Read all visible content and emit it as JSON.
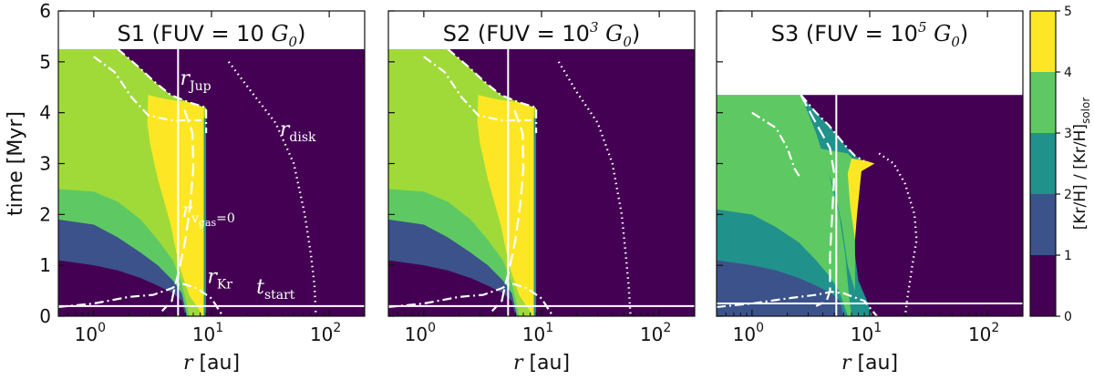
{
  "chart_data": {
    "type": "heatmap",
    "xscale": "log",
    "xlim": [
      0.5,
      200
    ],
    "ylim": [
      0,
      6
    ],
    "xlabel_var": "r",
    "xlabel_unit": "[au]",
    "ylabel": "time [Myr]",
    "x_ticks": [
      {
        "value": 1,
        "base": "10",
        "exp": "0"
      },
      {
        "value": 10,
        "base": "10",
        "exp": "1"
      },
      {
        "value": 100,
        "base": "10",
        "exp": "2"
      }
    ],
    "y_ticks": [
      "0",
      "1",
      "2",
      "3",
      "4",
      "5",
      "6"
    ],
    "colorbar": {
      "range": [
        0,
        5
      ],
      "ticks": [
        "0",
        "1",
        "2",
        "3",
        "4",
        "5"
      ],
      "label": "[Kr/H] / [Kr/H]",
      "label_sub": "solor",
      "levels": [
        "#440154",
        "#3b528b",
        "#21918c",
        "#5ec962",
        "#a0da39",
        "#fde725"
      ]
    },
    "panels": [
      {
        "title_pre": "S1 (FUV = 10 ",
        "title_exp": "",
        "title_G": "G",
        "title_sub": "0",
        "title_post": ")",
        "end_time": 5.25,
        "r_jupiter": 5.2,
        "t_start": 0.2,
        "annotations": [
          {
            "main": "r",
            "sub": "Jup",
            "x": 5.4,
            "y": 4.55
          },
          {
            "main": "r",
            "sub": "disk",
            "x": 38,
            "y": 3.55
          },
          {
            "main": "r",
            "sub": "v",
            "subsub": "gas",
            "tail": "=0",
            "x": 5.6,
            "y": 1.95
          },
          {
            "main": "r",
            "sub": "Kr",
            "x": 9.2,
            "y": 0.65
          },
          {
            "main": "t",
            "sub": "start",
            "x": 24,
            "y": 0.45
          }
        ],
        "outer_edge": [
          [
            1.6,
            5.25
          ],
          [
            2.4,
            4.9
          ],
          [
            3.3,
            4.6
          ],
          [
            4.5,
            4.35
          ],
          [
            6.5,
            4.2
          ],
          [
            9.0,
            4.1
          ],
          [
            9.0,
            3.6
          ],
          [
            8.8,
            2.6
          ],
          [
            8.8,
            0.0
          ]
        ],
        "bands_outer": [
          [
            0.5,
            1.0,
            "#5ec962"
          ],
          [
            1.0,
            1.7,
            "#21918c"
          ]
        ],
        "low_bands": [
          {
            "level": 4,
            "pts": [
              [
                0.5,
                2.5
              ],
              [
                1.0,
                2.45
              ],
              [
                1.6,
                2.25
              ],
              [
                2.5,
                1.9
              ],
              [
                3.5,
                1.5
              ],
              [
                4.7,
                1.1
              ],
              [
                5.6,
                0.65
              ],
              [
                6.5,
                0.0
              ]
            ]
          },
          {
            "level": 2,
            "pts": [
              [
                0.5,
                1.9
              ],
              [
                1.0,
                1.8
              ],
              [
                1.6,
                1.55
              ],
              [
                2.5,
                1.25
              ],
              [
                3.5,
                1.0
              ],
              [
                4.7,
                0.7
              ],
              [
                5.6,
                0.45
              ],
              [
                6.2,
                0.0
              ]
            ]
          },
          {
            "level": 1,
            "pts": [
              [
                0.5,
                1.1
              ],
              [
                1.0,
                1.0
              ],
              [
                1.6,
                0.9
              ],
              [
                2.5,
                0.75
              ],
              [
                3.5,
                0.6
              ],
              [
                4.7,
                0.45
              ],
              [
                5.6,
                0.3
              ],
              [
                6.0,
                0.0
              ]
            ]
          }
        ],
        "yellow": [
          [
            2.9,
            4.35
          ],
          [
            3.5,
            4.3
          ],
          [
            4.5,
            4.25
          ],
          [
            6.5,
            4.2
          ],
          [
            8.6,
            4.1
          ],
          [
            8.6,
            0.0
          ],
          [
            6.5,
            0.4
          ],
          [
            5.3,
            1.0
          ],
          [
            4.5,
            1.8
          ],
          [
            3.5,
            2.7
          ],
          [
            3.0,
            3.4
          ],
          [
            2.85,
            3.8
          ],
          [
            2.9,
            4.35
          ]
        ],
        "r_disk": [
          [
            14,
            5.0
          ],
          [
            22,
            4.4
          ],
          [
            35,
            3.8
          ],
          [
            50,
            3.0
          ],
          [
            62,
            2.0
          ],
          [
            70,
            1.2
          ],
          [
            75,
            0.6
          ],
          [
            77,
            0.0
          ]
        ],
        "r_vgas": [
          [
            5.9,
            4.05
          ],
          [
            6.9,
            3.6
          ],
          [
            7.0,
            2.9
          ],
          [
            6.6,
            2.2
          ],
          [
            6.0,
            1.5
          ],
          [
            5.3,
            0.9
          ],
          [
            4.9,
            0.6
          ],
          [
            4.6,
            0.3
          ],
          [
            3.8,
            0.1
          ]
        ],
        "r_kr": [
          [
            1.0,
            5.1
          ],
          [
            1.5,
            4.8
          ],
          [
            2.1,
            4.3
          ],
          [
            2.9,
            3.95
          ],
          [
            4.5,
            3.85
          ],
          [
            8.2,
            3.85
          ]
        ],
        "dash_dot_low": [
          [
            0.5,
            0.18
          ],
          [
            1.0,
            0.25
          ],
          [
            2.0,
            0.38
          ],
          [
            3.2,
            0.42
          ],
          [
            4.6,
            0.55
          ],
          [
            5.5,
            0.65
          ],
          [
            7.5,
            0.55
          ],
          [
            10.0,
            0.35
          ],
          [
            12.5,
            0.0
          ]
        ]
      },
      {
        "title_pre": "S2 (FUV = 10",
        "title_exp": "3",
        "title_G": "G",
        "title_sub": "0",
        "title_post": ")",
        "end_time": 5.25,
        "r_jupiter": 5.2,
        "t_start": 0.2,
        "annotations": [],
        "outer_edge": [
          [
            1.6,
            5.25
          ],
          [
            2.4,
            4.9
          ],
          [
            3.3,
            4.6
          ],
          [
            4.5,
            4.35
          ],
          [
            6.5,
            4.2
          ],
          [
            9.0,
            4.1
          ],
          [
            9.0,
            3.6
          ],
          [
            8.8,
            2.6
          ],
          [
            8.8,
            0.0
          ]
        ],
        "bands_outer": [],
        "low_bands": [
          {
            "level": 4,
            "pts": [
              [
                0.5,
                2.5
              ],
              [
                1.0,
                2.45
              ],
              [
                1.6,
                2.25
              ],
              [
                2.5,
                1.9
              ],
              [
                3.5,
                1.5
              ],
              [
                4.7,
                1.1
              ],
              [
                5.6,
                0.65
              ],
              [
                6.5,
                0.0
              ]
            ]
          },
          {
            "level": 2,
            "pts": [
              [
                0.5,
                1.9
              ],
              [
                1.0,
                1.8
              ],
              [
                1.6,
                1.55
              ],
              [
                2.5,
                1.25
              ],
              [
                3.5,
                1.0
              ],
              [
                4.7,
                0.7
              ],
              [
                5.6,
                0.45
              ],
              [
                6.2,
                0.0
              ]
            ]
          },
          {
            "level": 1,
            "pts": [
              [
                0.5,
                1.1
              ],
              [
                1.0,
                1.0
              ],
              [
                1.6,
                0.9
              ],
              [
                2.5,
                0.75
              ],
              [
                3.5,
                0.6
              ],
              [
                4.7,
                0.45
              ],
              [
                5.6,
                0.3
              ],
              [
                6.0,
                0.0
              ]
            ]
          }
        ],
        "yellow": [
          [
            2.9,
            4.35
          ],
          [
            3.5,
            4.3
          ],
          [
            4.5,
            4.25
          ],
          [
            6.5,
            4.2
          ],
          [
            8.6,
            4.1
          ],
          [
            8.6,
            0.0
          ],
          [
            6.5,
            0.4
          ],
          [
            5.3,
            1.0
          ],
          [
            4.5,
            1.8
          ],
          [
            3.5,
            2.7
          ],
          [
            3.0,
            3.4
          ],
          [
            2.85,
            3.8
          ],
          [
            2.9,
            4.35
          ]
        ],
        "r_disk": [
          [
            14,
            5.0
          ],
          [
            20,
            4.4
          ],
          [
            30,
            3.8
          ],
          [
            40,
            3.0
          ],
          [
            48,
            2.0
          ],
          [
            52,
            1.2
          ],
          [
            55,
            0.6
          ],
          [
            57,
            0.0
          ]
        ],
        "r_vgas": [
          [
            5.9,
            4.05
          ],
          [
            6.9,
            3.6
          ],
          [
            7.0,
            2.9
          ],
          [
            6.6,
            2.2
          ],
          [
            6.0,
            1.5
          ],
          [
            5.3,
            0.9
          ],
          [
            4.9,
            0.6
          ],
          [
            4.6,
            0.3
          ],
          [
            3.8,
            0.1
          ]
        ],
        "r_kr": [
          [
            1.0,
            5.1
          ],
          [
            1.5,
            4.8
          ],
          [
            2.1,
            4.3
          ],
          [
            2.9,
            3.95
          ],
          [
            4.5,
            3.85
          ],
          [
            8.2,
            3.85
          ]
        ],
        "dash_dot_low": [
          [
            0.5,
            0.18
          ],
          [
            1.0,
            0.25
          ],
          [
            2.0,
            0.38
          ],
          [
            3.2,
            0.42
          ],
          [
            4.6,
            0.55
          ],
          [
            5.5,
            0.65
          ],
          [
            7.5,
            0.55
          ],
          [
            10.0,
            0.35
          ],
          [
            12.5,
            0.0
          ]
        ]
      },
      {
        "title_pre": "S3 (FUV = 10",
        "title_exp": "5",
        "title_G": "G",
        "title_sub": "0",
        "title_post": ")",
        "end_time": 4.35,
        "r_jupiter": 5.2,
        "t_start": 0.25,
        "annotations": [],
        "outer_edge": [
          [
            2.6,
            4.35
          ],
          [
            3.5,
            4.0
          ],
          [
            4.5,
            3.75
          ],
          [
            5.5,
            3.5
          ],
          [
            6.5,
            3.3
          ],
          [
            7.5,
            3.15
          ],
          [
            9.0,
            3.05
          ],
          [
            10.5,
            3.0
          ],
          [
            7.5,
            2.8
          ],
          [
            7.2,
            2.0
          ],
          [
            7.5,
            1.2
          ],
          [
            8.0,
            0.7
          ],
          [
            9.5,
            0.3
          ],
          [
            10.5,
            0.0
          ]
        ],
        "bands_outer": [],
        "low_bands": [
          {
            "level": 3,
            "pts": [
              [
                0.5,
                4.35
              ],
              [
                2.6,
                4.35
              ],
              [
                3.5,
                3.6
              ],
              [
                4.5,
                2.8
              ],
              [
                5.5,
                2.0
              ],
              [
                6.2,
                1.2
              ],
              [
                6.6,
                0.5
              ],
              [
                7.0,
                0.0
              ]
            ]
          },
          {
            "level": 2,
            "pts": [
              [
                0.5,
                2.1
              ],
              [
                1.0,
                2.0
              ],
              [
                1.6,
                1.75
              ],
              [
                2.5,
                1.45
              ],
              [
                3.5,
                1.1
              ],
              [
                4.5,
                0.8
              ],
              [
                5.5,
                0.5
              ],
              [
                6.5,
                0.0
              ]
            ]
          },
          {
            "level": 1,
            "pts": [
              [
                0.5,
                1.1
              ],
              [
                1.0,
                1.0
              ],
              [
                1.6,
                0.9
              ],
              [
                2.5,
                0.75
              ],
              [
                3.5,
                0.6
              ],
              [
                4.7,
                0.45
              ],
              [
                5.6,
                0.3
              ],
              [
                6.0,
                0.0
              ]
            ]
          }
        ],
        "greenish": [
          [
            3.7,
            3.3
          ],
          [
            6.5,
            3.2
          ],
          [
            7.5,
            3.05
          ],
          [
            7.5,
            0.5
          ],
          [
            6.5,
            1.0
          ],
          [
            5.8,
            1.8
          ],
          [
            5.0,
            2.5
          ],
          [
            4.2,
            3.0
          ],
          [
            3.7,
            3.3
          ]
        ],
        "yellow": [
          [
            7.0,
            3.1
          ],
          [
            9.5,
            3.05
          ],
          [
            11.0,
            3.0
          ],
          [
            8.5,
            2.85
          ],
          [
            7.8,
            2.0
          ],
          [
            7.5,
            1.5
          ],
          [
            6.8,
            2.2
          ],
          [
            6.5,
            2.8
          ],
          [
            7.0,
            3.1
          ]
        ],
        "r_disk": [
          [
            12,
            3.2
          ],
          [
            16,
            3.0
          ],
          [
            20,
            2.6
          ],
          [
            24,
            2.0
          ],
          [
            25,
            1.5
          ],
          [
            23,
            1.0
          ],
          [
            22,
            0.7
          ],
          [
            21,
            0.4
          ],
          [
            20,
            0.0
          ]
        ],
        "r_vgas": [
          [
            2.6,
            4.35
          ],
          [
            3.3,
            3.9
          ],
          [
            4.6,
            3.3
          ],
          [
            5.0,
            2.8
          ],
          [
            4.8,
            2.0
          ],
          [
            4.6,
            1.2
          ],
          [
            4.6,
            0.5
          ],
          [
            4.3,
            0.3
          ],
          [
            3.5,
            0.2
          ]
        ],
        "r_kr": [
          [
            1.0,
            4.0
          ],
          [
            1.6,
            3.7
          ],
          [
            2.0,
            3.3
          ],
          [
            2.3,
            2.9
          ],
          [
            2.6,
            2.7
          ]
        ],
        "dash_dot_low": [
          [
            0.5,
            0.18
          ],
          [
            1.0,
            0.25
          ],
          [
            2.0,
            0.35
          ],
          [
            3.5,
            0.42
          ],
          [
            4.7,
            0.48
          ],
          [
            6.0,
            0.45
          ],
          [
            9.0,
            0.3
          ],
          [
            11.5,
            0.0
          ]
        ]
      }
    ]
  }
}
